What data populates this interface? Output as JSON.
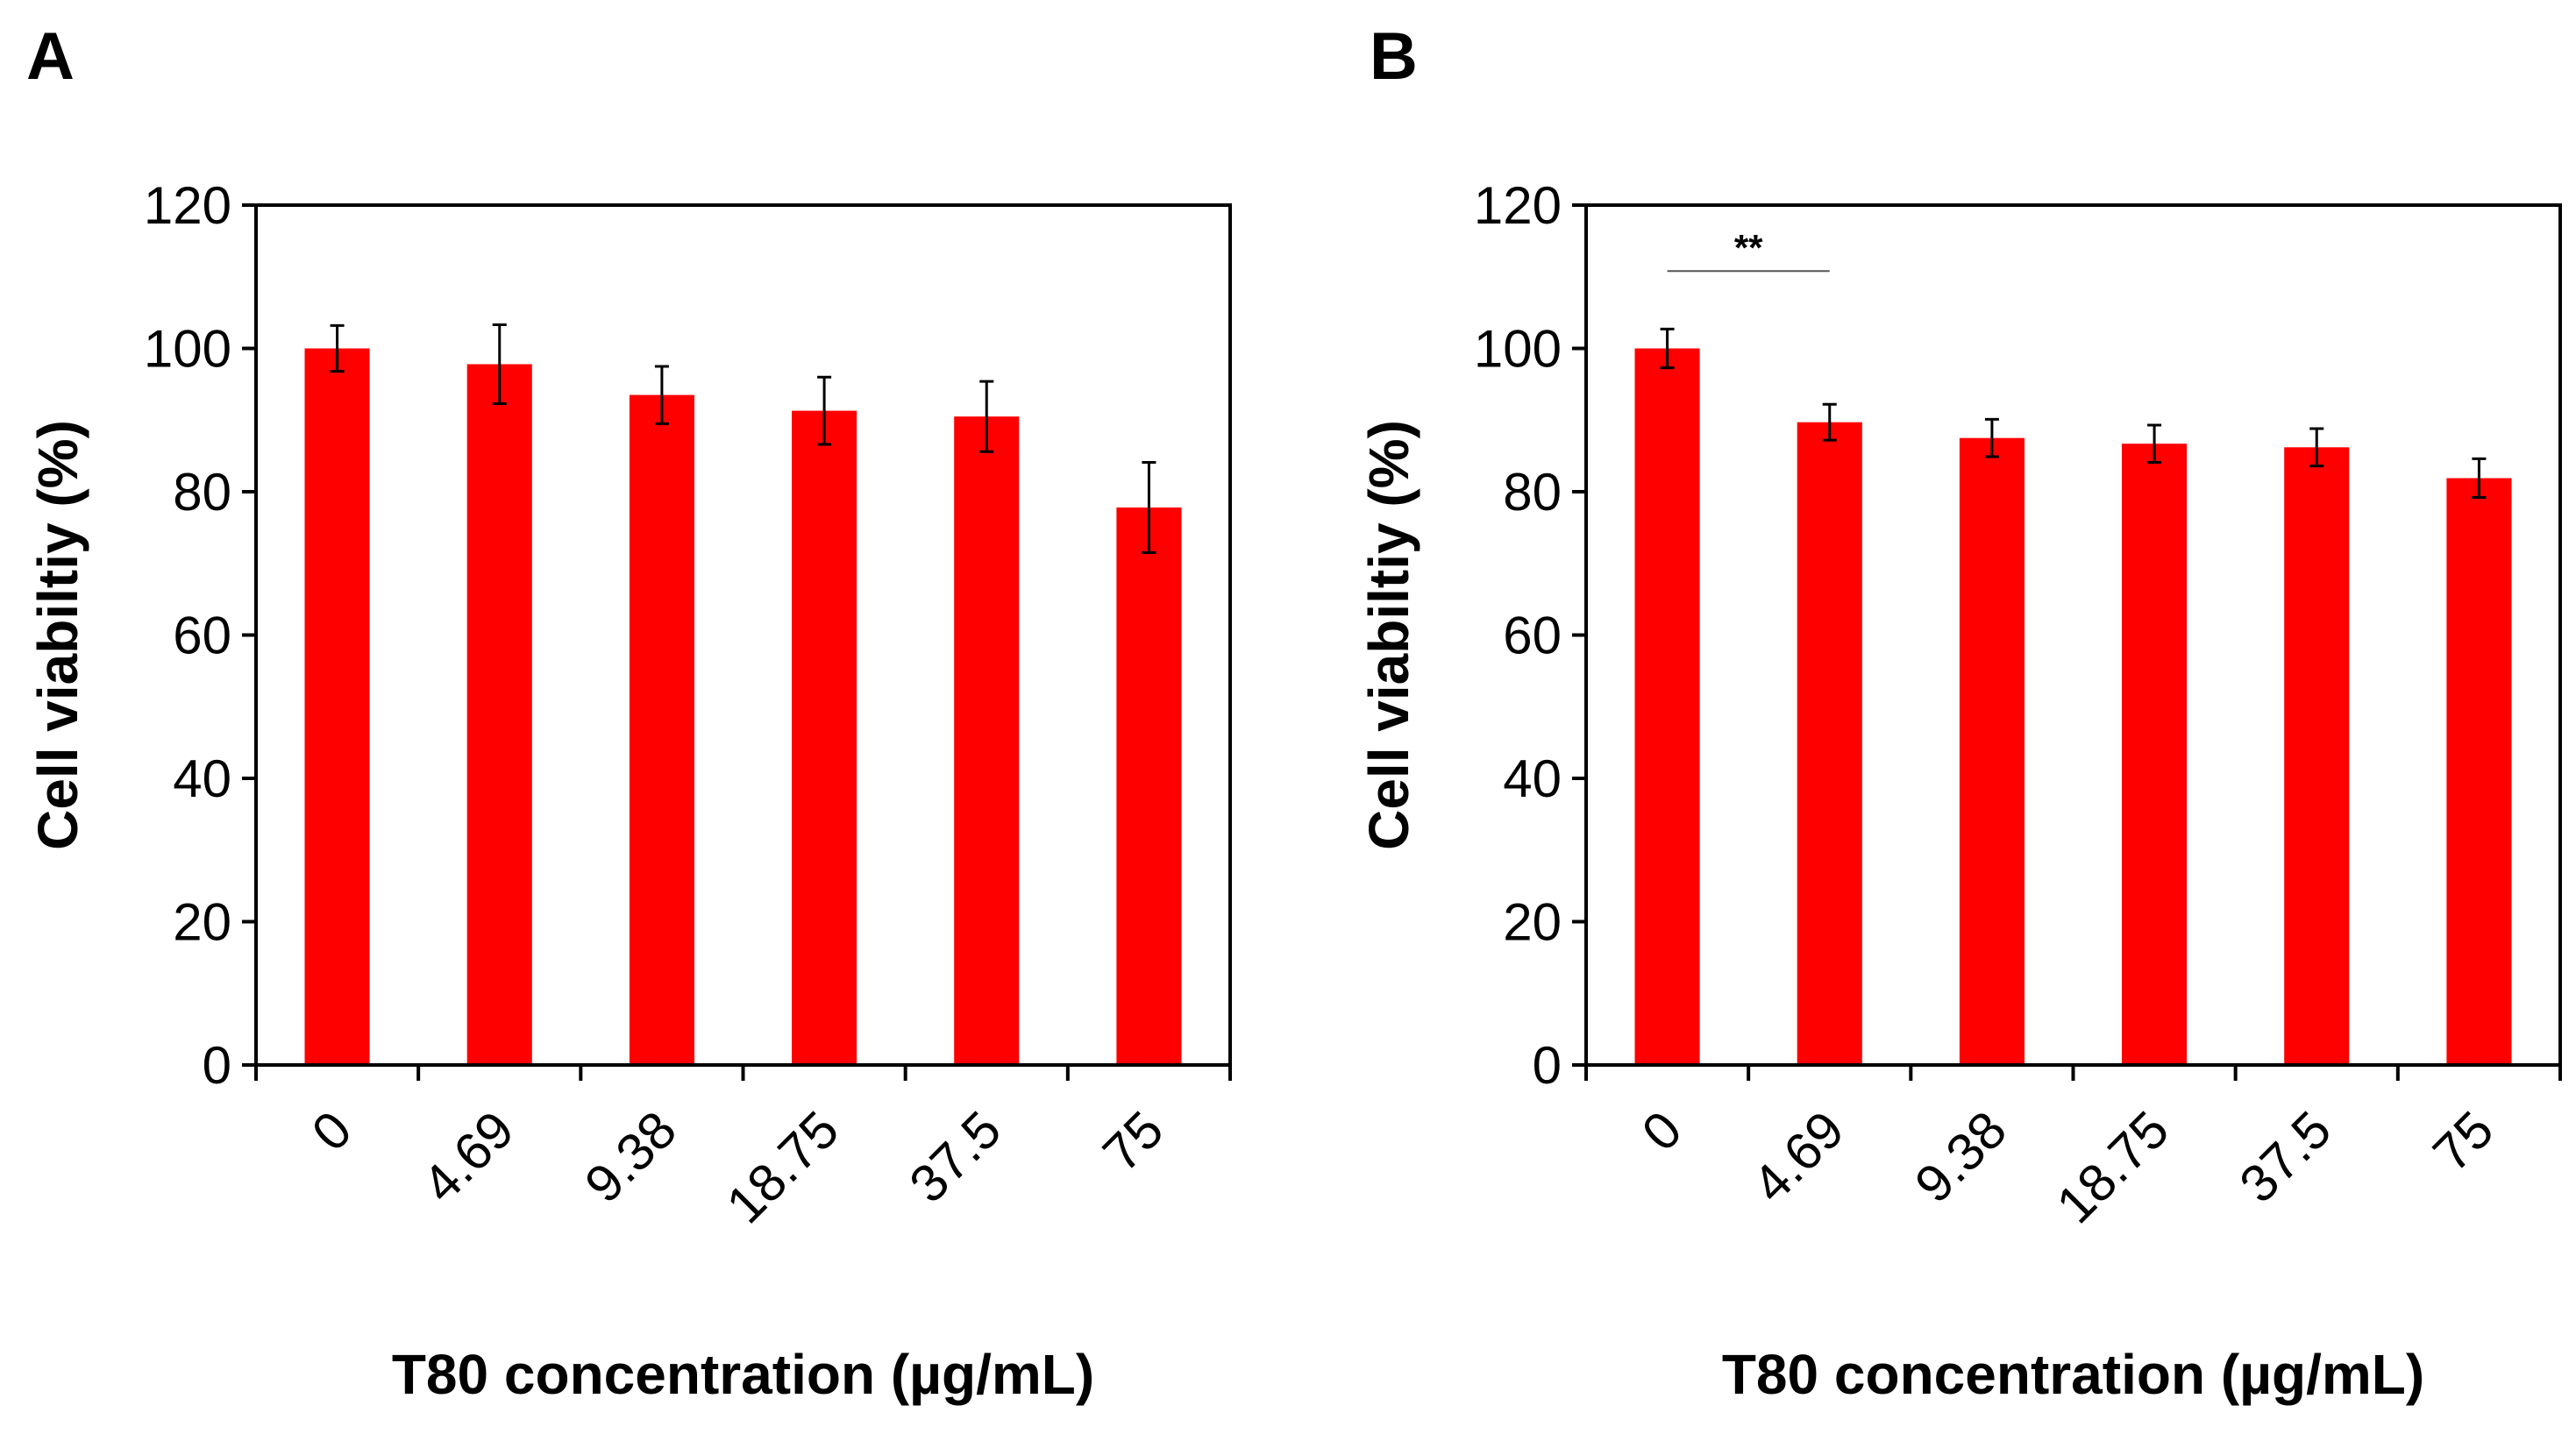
{
  "chart_data": [
    {
      "panel": "A",
      "type": "bar",
      "categories": [
        "0",
        "4.69",
        "9.38",
        "18.75",
        "37.5",
        "75"
      ],
      "values": [
        100,
        97.8,
        93.5,
        91.3,
        90.5,
        77.8
      ],
      "errors": [
        3.2,
        5.5,
        4.0,
        4.7,
        4.9,
        6.3
      ],
      "xlabel": "T80 concentration (µg/mL)",
      "ylabel": "Cell viabiltiy (%)",
      "ylim": [
        0,
        120
      ],
      "yticks": [
        0,
        20,
        40,
        60,
        80,
        100,
        120
      ],
      "bar_color": "#ff0000",
      "significance": null
    },
    {
      "panel": "B",
      "type": "bar",
      "categories": [
        "0",
        "4.69",
        "9.38",
        "18.75",
        "37.5",
        "75"
      ],
      "values": [
        100,
        89.7,
        87.5,
        86.7,
        86.2,
        81.9
      ],
      "errors": [
        2.7,
        2.5,
        2.6,
        2.6,
        2.6,
        2.7
      ],
      "xlabel": "T80 concentration (µg/mL)",
      "ylabel": "Cell viabiltiy (%)",
      "ylim": [
        0,
        120
      ],
      "yticks": [
        0,
        20,
        40,
        60,
        80,
        100,
        120
      ],
      "bar_color": "#ff0000",
      "significance": {
        "from": 0,
        "to": 1,
        "label": "**",
        "level": 110.8
      }
    }
  ]
}
